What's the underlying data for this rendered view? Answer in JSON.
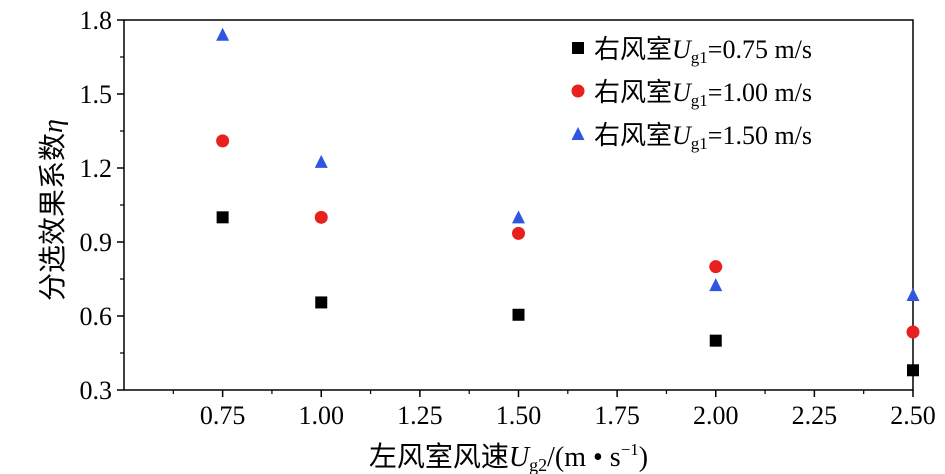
{
  "chart_data": {
    "type": "scatter",
    "title": "",
    "xlabel": {
      "main": "左风室风速",
      "var": "U",
      "var_sub": "g2",
      "unit_open": "/(m • s",
      "unit_sup": "−1",
      "unit_close": ")"
    },
    "ylabel": {
      "main": "分选效果系数",
      "var": "η"
    },
    "xlim": [
      0.5,
      2.5
    ],
    "ylim": [
      0.3,
      1.8
    ],
    "x_ticks": [
      "0.75",
      "1.00",
      "1.25",
      "1.50",
      "1.75",
      "2.00",
      "2.25",
      "2.50"
    ],
    "y_ticks": [
      "0.3",
      "0.6",
      "0.9",
      "1.2",
      "1.5",
      "1.8"
    ],
    "grid": false,
    "legend_position": "top-right",
    "series": [
      {
        "prefix": "右风室",
        "var": "U",
        "var_sub": "g1",
        "value_text": "=0.75 m/s",
        "marker": "square",
        "color": "#000000",
        "points": [
          [
            0.75,
            1.0
          ],
          [
            1.0,
            0.655
          ],
          [
            1.5,
            0.605
          ],
          [
            2.0,
            0.5
          ],
          [
            2.5,
            0.38
          ]
        ]
      },
      {
        "prefix": "右风室",
        "var": "U",
        "var_sub": "g1",
        "value_text": "=1.00 m/s",
        "marker": "circle",
        "color": "#e8201e",
        "points": [
          [
            0.75,
            1.31
          ],
          [
            1.0,
            1.0
          ],
          [
            1.5,
            0.935
          ],
          [
            2.0,
            0.8
          ],
          [
            2.5,
            0.535
          ]
        ]
      },
      {
        "prefix": "右风室",
        "var": "U",
        "var_sub": "g1",
        "value_text": "=1.50 m/s",
        "marker": "triangle",
        "color": "#2f56e0",
        "points": [
          [
            0.75,
            1.74
          ],
          [
            1.0,
            1.225
          ],
          [
            1.5,
            1.0
          ],
          [
            2.0,
            0.725
          ],
          [
            2.5,
            0.685
          ]
        ]
      }
    ]
  }
}
